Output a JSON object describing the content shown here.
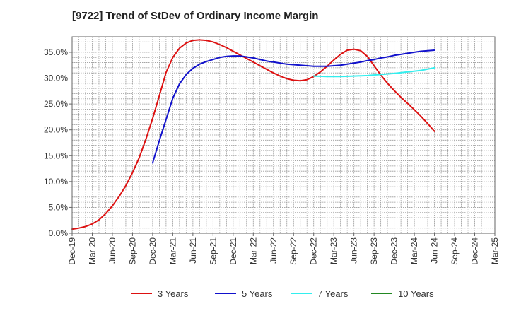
{
  "chart_data": {
    "type": "line",
    "title": "[9722]  Trend of StDev of Ordinary Income Margin",
    "xlabel": "",
    "ylabel": "",
    "x_ticks": [
      "Dec-19",
      "Mar-20",
      "Jun-20",
      "Sep-20",
      "Dec-20",
      "Mar-21",
      "Jun-21",
      "Sep-21",
      "Dec-21",
      "Mar-22",
      "Jun-22",
      "Sep-22",
      "Dec-22",
      "Mar-23",
      "Jun-23",
      "Sep-23",
      "Dec-23",
      "Mar-24",
      "Jun-24",
      "Sep-24",
      "Dec-24",
      "Mar-25"
    ],
    "y_ticks": [
      "0.0%",
      "5.0%",
      "10.0%",
      "15.0%",
      "20.0%",
      "25.0%",
      "30.0%",
      "35.0%"
    ],
    "ylim": [
      0,
      38
    ],
    "grid": true,
    "legend_position": "bottom",
    "series": [
      {
        "name": "3 Years",
        "color": "#dd1111",
        "points": [
          [
            "Dec-19",
            0.8
          ],
          [
            "Jan-20",
            1.0
          ],
          [
            "Feb-20",
            1.3
          ],
          [
            "Mar-20",
            1.8
          ],
          [
            "Apr-20",
            2.6
          ],
          [
            "May-20",
            3.8
          ],
          [
            "Jun-20",
            5.3
          ],
          [
            "Jul-20",
            7.1
          ],
          [
            "Aug-20",
            9.2
          ],
          [
            "Sep-20",
            11.7
          ],
          [
            "Oct-20",
            14.6
          ],
          [
            "Nov-20",
            18.2
          ],
          [
            "Dec-20",
            22.2
          ],
          [
            "Jan-21",
            26.6
          ],
          [
            "Feb-21",
            31.1
          ],
          [
            "Mar-21",
            34.0
          ],
          [
            "Apr-21",
            35.8
          ],
          [
            "May-21",
            36.8
          ],
          [
            "Jun-21",
            37.3
          ],
          [
            "Jul-21",
            37.4
          ],
          [
            "Aug-21",
            37.3
          ],
          [
            "Sep-21",
            37.0
          ],
          [
            "Oct-21",
            36.5
          ],
          [
            "Nov-21",
            35.9
          ],
          [
            "Dec-21",
            35.2
          ],
          [
            "Jan-22",
            34.5
          ],
          [
            "Feb-22",
            33.8
          ],
          [
            "Mar-22",
            33.1
          ],
          [
            "Apr-22",
            32.4
          ],
          [
            "May-22",
            31.7
          ],
          [
            "Jun-22",
            31.0
          ],
          [
            "Jul-22",
            30.4
          ],
          [
            "Aug-22",
            29.9
          ],
          [
            "Sep-22",
            29.6
          ],
          [
            "Oct-22",
            29.5
          ],
          [
            "Nov-22",
            29.7
          ],
          [
            "Dec-22",
            30.3
          ],
          [
            "Jan-23",
            31.2
          ],
          [
            "Feb-23",
            32.3
          ],
          [
            "Mar-23",
            33.5
          ],
          [
            "Apr-23",
            34.6
          ],
          [
            "May-23",
            35.4
          ],
          [
            "Jun-23",
            35.6
          ],
          [
            "Jul-23",
            35.3
          ],
          [
            "Aug-23",
            34.2
          ],
          [
            "Sep-23",
            32.4
          ],
          [
            "Oct-23",
            30.6
          ],
          [
            "Nov-23",
            29.0
          ],
          [
            "Dec-23",
            27.6
          ],
          [
            "Jan-24",
            26.3
          ],
          [
            "Feb-24",
            25.1
          ],
          [
            "Mar-24",
            23.9
          ],
          [
            "Apr-24",
            22.6
          ],
          [
            "May-24",
            21.2
          ],
          [
            "Jun-24",
            19.7
          ]
        ]
      },
      {
        "name": "5 Years",
        "color": "#1111cc",
        "points": [
          [
            "Dec-20",
            13.6
          ],
          [
            "Jan-21",
            17.9
          ],
          [
            "Feb-21",
            22.0
          ],
          [
            "Mar-21",
            26.1
          ],
          [
            "Apr-21",
            28.9
          ],
          [
            "May-21",
            30.7
          ],
          [
            "Jun-21",
            31.9
          ],
          [
            "Jul-21",
            32.7
          ],
          [
            "Aug-21",
            33.2
          ],
          [
            "Sep-21",
            33.6
          ],
          [
            "Oct-21",
            34.0
          ],
          [
            "Nov-21",
            34.2
          ],
          [
            "Dec-21",
            34.3
          ],
          [
            "Jan-22",
            34.3
          ],
          [
            "Feb-22",
            34.1
          ],
          [
            "Mar-22",
            33.9
          ],
          [
            "Apr-22",
            33.6
          ],
          [
            "May-22",
            33.3
          ],
          [
            "Jun-22",
            33.1
          ],
          [
            "Jul-22",
            32.9
          ],
          [
            "Aug-22",
            32.7
          ],
          [
            "Sep-22",
            32.6
          ],
          [
            "Oct-22",
            32.5
          ],
          [
            "Nov-22",
            32.4
          ],
          [
            "Dec-22",
            32.3
          ],
          [
            "Jan-23",
            32.3
          ],
          [
            "Feb-23",
            32.3
          ],
          [
            "Mar-23",
            32.4
          ],
          [
            "Apr-23",
            32.5
          ],
          [
            "May-23",
            32.7
          ],
          [
            "Jun-23",
            32.9
          ],
          [
            "Jul-23",
            33.1
          ],
          [
            "Aug-23",
            33.4
          ],
          [
            "Sep-23",
            33.6
          ],
          [
            "Oct-23",
            33.9
          ],
          [
            "Nov-23",
            34.1
          ],
          [
            "Dec-23",
            34.4
          ],
          [
            "Jan-24",
            34.6
          ],
          [
            "Feb-24",
            34.8
          ],
          [
            "Mar-24",
            35.0
          ],
          [
            "Apr-24",
            35.2
          ],
          [
            "May-24",
            35.3
          ],
          [
            "Jun-24",
            35.4
          ]
        ]
      },
      {
        "name": "7 Years",
        "color": "#33eeee",
        "points": [
          [
            "Dec-22",
            30.4
          ],
          [
            "Feb-23",
            30.3
          ],
          [
            "Apr-23",
            30.3
          ],
          [
            "Jun-23",
            30.4
          ],
          [
            "Aug-23",
            30.5
          ],
          [
            "Oct-23",
            30.7
          ],
          [
            "Dec-23",
            30.9
          ],
          [
            "Feb-24",
            31.2
          ],
          [
            "Apr-24",
            31.5
          ],
          [
            "Jun-24",
            32.0
          ]
        ]
      },
      {
        "name": "10 Years",
        "color": "#228822",
        "points": []
      }
    ]
  }
}
